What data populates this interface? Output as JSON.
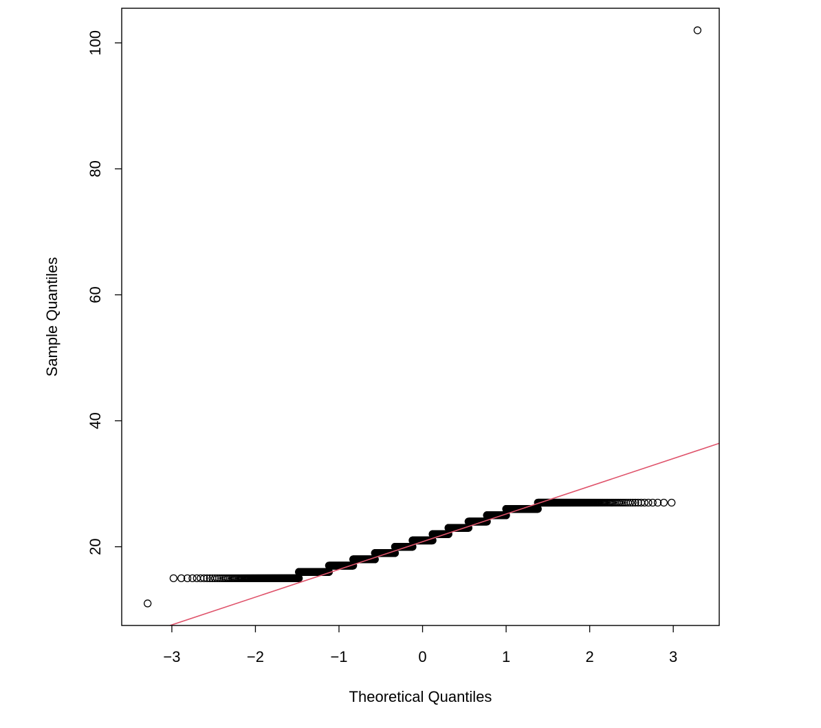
{
  "chart_data": {
    "type": "scatter",
    "subtype": "normal-qq-plot",
    "title": "",
    "xlabel": "Theoretical Quantiles",
    "ylabel": "Sample Quantiles",
    "xlim": [
      -3.6,
      3.55
    ],
    "ylim": [
      7.5,
      105.5
    ],
    "x_ticks": [
      -3,
      -2,
      -1,
      0,
      1,
      2,
      3
    ],
    "x_tick_labels": [
      "−3",
      "−2",
      "−1",
      "0",
      "1",
      "2",
      "3"
    ],
    "y_ticks": [
      20,
      40,
      60,
      80,
      100
    ],
    "y_tick_labels": [
      "20",
      "40",
      "60",
      "80",
      "100"
    ],
    "grid": false,
    "legend": "none",
    "point_style": "open-circle",
    "colors": {
      "points": "#000000",
      "reference_line": "#df536b",
      "axes": "#000000"
    },
    "outliers": [
      {
        "x": -3.29,
        "y": 11
      },
      {
        "x": 3.29,
        "y": 102
      }
    ],
    "steps": [
      {
        "y": 15,
        "x_from": -2.98,
        "x_to": -1.48
      },
      {
        "y": 16,
        "x_from": -1.48,
        "x_to": -1.12
      },
      {
        "y": 17,
        "x_from": -1.12,
        "x_to": -0.83
      },
      {
        "y": 18,
        "x_from": -0.83,
        "x_to": -0.57
      },
      {
        "y": 19,
        "x_from": -0.57,
        "x_to": -0.33
      },
      {
        "y": 20,
        "x_from": -0.33,
        "x_to": -0.12
      },
      {
        "y": 21,
        "x_from": -0.12,
        "x_to": 0.12
      },
      {
        "y": 22,
        "x_from": 0.12,
        "x_to": 0.31
      },
      {
        "y": 23,
        "x_from": 0.31,
        "x_to": 0.55
      },
      {
        "y": 24,
        "x_from": 0.55,
        "x_to": 0.77
      },
      {
        "y": 25,
        "x_from": 0.77,
        "x_to": 1.0
      },
      {
        "y": 26,
        "x_from": 1.0,
        "x_to": 1.38
      },
      {
        "y": 27,
        "x_from": 1.38,
        "x_to": 2.98
      }
    ],
    "reference_line": {
      "intercept": 20.8,
      "slope": 4.4
    }
  }
}
